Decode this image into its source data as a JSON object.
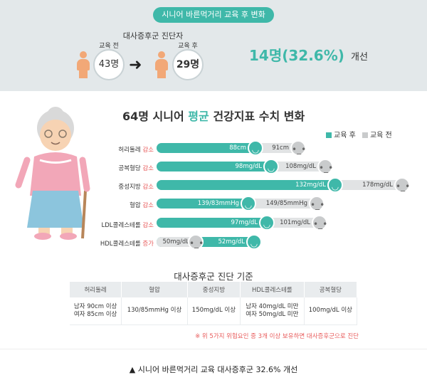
{
  "banner": "시니어 바른먹거리 교육 후 변화",
  "diagnosis": {
    "title": "대사증후군 진단자",
    "before_label": "교육 전",
    "before_value": "43명",
    "after_label": "교육 후",
    "after_value": "29명",
    "result_value": "14명(32.6%)",
    "result_text": "개선"
  },
  "section": {
    "title_pre": "64명 시니어 ",
    "title_hl": "평균",
    "title_post": " 건강지표 수치 변화"
  },
  "legend": {
    "after": "교육 후",
    "before": "교육 전"
  },
  "colors": {
    "teal": "#3fb8a9",
    "gray": "#e1e3e4",
    "red": "#e85b5b"
  },
  "indicators": [
    {
      "name": "허리둘레",
      "change": "감소",
      "after": "88cm",
      "before": "91cm"
    },
    {
      "name": "공복혈당",
      "change": "감소",
      "after": "98mg/dL",
      "before": "108mg/dL"
    },
    {
      "name": "중성지방",
      "change": "감소",
      "after": "132mg/dL",
      "before": "178mg/dL"
    },
    {
      "name": "혈압",
      "change": "감소",
      "after": "139/83mmHg",
      "before": "149/85mmHg"
    },
    {
      "name": "LDL콜레스테롤",
      "change": "감소",
      "after": "97mg/dL",
      "before": "101mg/dL"
    },
    {
      "name": "HDL콜레스테롤",
      "change": "증가",
      "after": "52mg/dL",
      "before": "50mg/dL"
    }
  ],
  "criteria": {
    "title": "대사증후군 진단 기준",
    "headers": [
      "허리둘레",
      "혈압",
      "중성지방",
      "HDL콜레스테롤",
      "공복혈당"
    ],
    "cells": [
      [
        "남자 90cm 이상",
        "여자 85cm 이상"
      ],
      [
        "130/85mmHg 이상"
      ],
      [
        "150mg/dL 이상"
      ],
      [
        "남자 40mg/dL 미만",
        "여자 50mg/dL 미만"
      ],
      [
        "100mg/dL 이상"
      ]
    ],
    "note": "※ 위 5가지 위험요인 중 3개 이상 보유하면 대사증후군으로 진단"
  },
  "caption": "▲ 시니어 바른먹거리 교육 대사증후군 32.6% 개선"
}
